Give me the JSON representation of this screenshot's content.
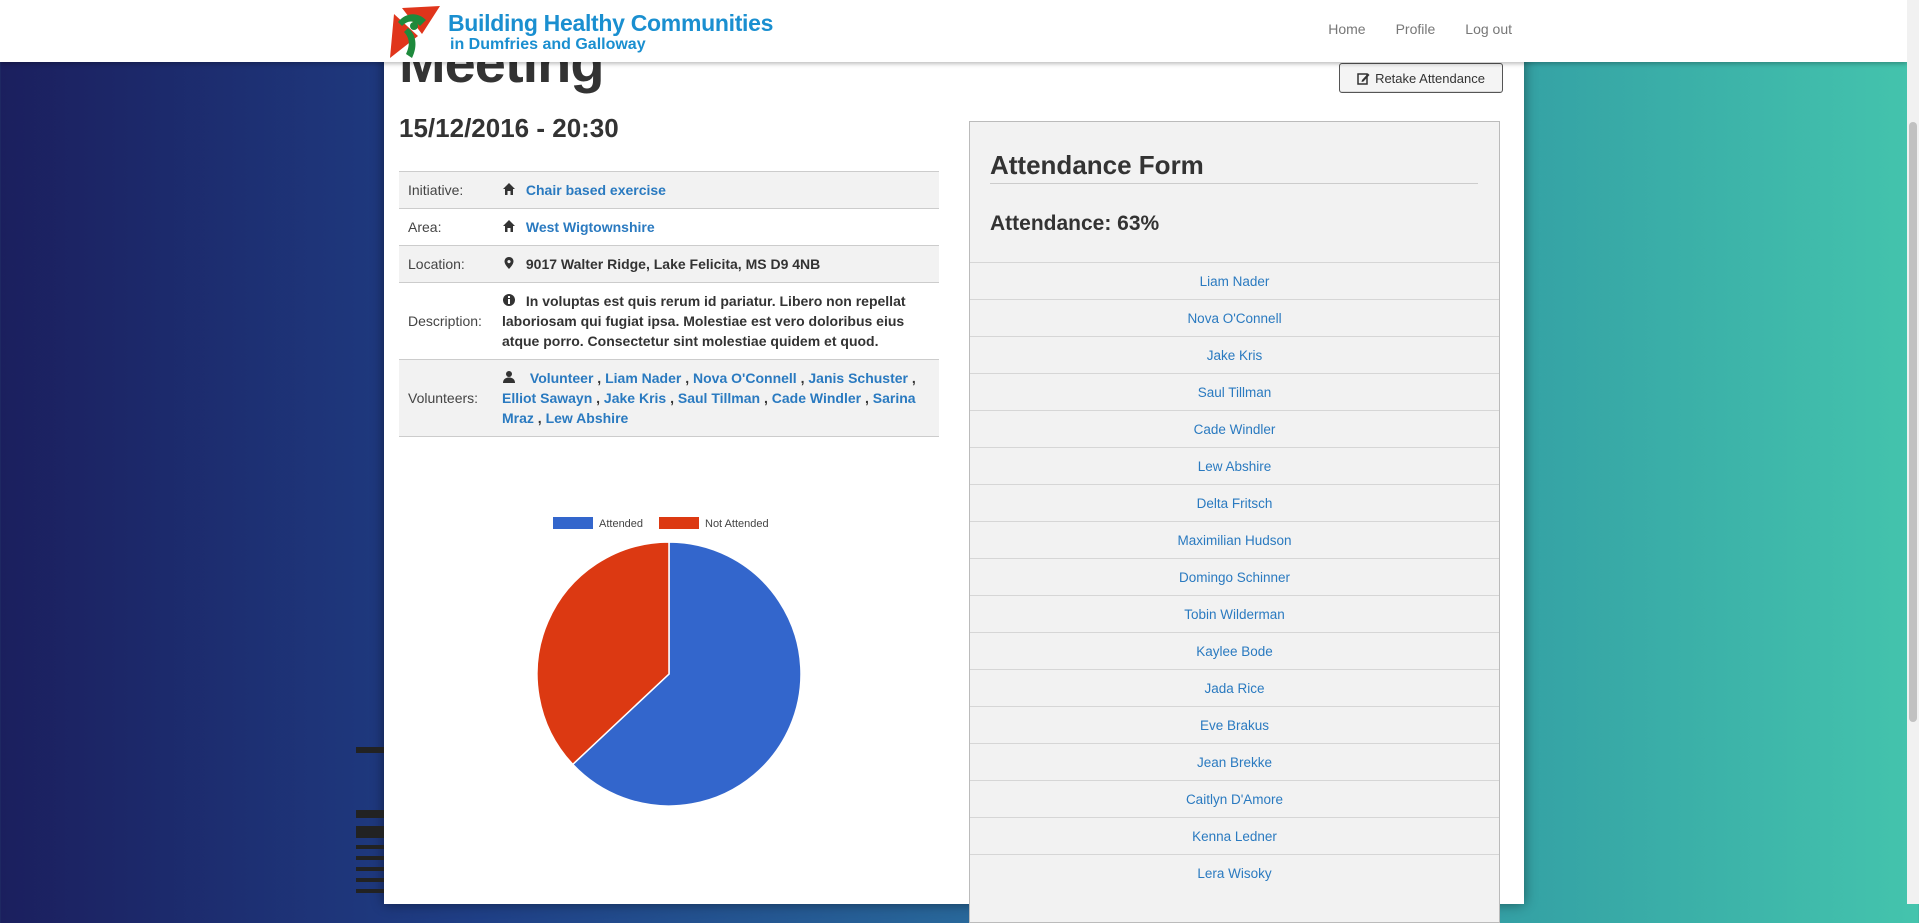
{
  "brand": {
    "line1": "Building Healthy Communities",
    "line2": "in Dumfries and Galloway"
  },
  "nav": [
    "Home",
    "Profile",
    "Log out"
  ],
  "page": {
    "title": "Meeting",
    "date": "15/12/2016 - 20:30",
    "retake_label": "Retake Attendance"
  },
  "details": {
    "initiative": {
      "label": "Initiative:",
      "value": "Chair based exercise"
    },
    "area": {
      "label": "Area:",
      "value": "West Wigtownshire"
    },
    "location": {
      "label": "Location:",
      "value": "9017 Walter Ridge, Lake Felicita, MS D9 4NB"
    },
    "description": {
      "label": "Description:",
      "value": "In voluptas est quis rerum id pariatur. Libero non repellat laboriosam qui fugiat ipsa. Molestiae est vero doloribus eius atque porro. Consectetur sint molestiae quidem et quod."
    },
    "volunteers": {
      "label": "Volunteers:",
      "items": [
        "Volunteer",
        "Liam Nader",
        "Nova O'Connell",
        "Janis Schuster",
        "Elliot Sawayn",
        "Jake Kris",
        "Saul Tillman",
        "Cade Windler",
        "Sarina Mraz",
        "Lew Abshire"
      ]
    }
  },
  "chart_data": {
    "type": "pie",
    "labels": [
      "Attended",
      "Not Attended"
    ],
    "values": [
      63,
      37
    ],
    "colors": [
      "#3366cc",
      "#dc3912"
    ],
    "legend": "top"
  },
  "attendance": {
    "title": "Attendance Form",
    "summary": "Attendance: 63%",
    "names": [
      "Liam Nader",
      "Nova O'Connell",
      "Jake Kris",
      "Saul Tillman",
      "Cade Windler",
      "Lew Abshire",
      "Delta Fritsch",
      "Maximilian Hudson",
      "Domingo Schinner",
      "Tobin Wilderman",
      "Kaylee Bode",
      "Jada Rice",
      "Eve Brakus",
      "Jean Brekke",
      "Caitlyn D'Amore",
      "Kenna Ledner",
      "Lera Wisoky"
    ]
  }
}
